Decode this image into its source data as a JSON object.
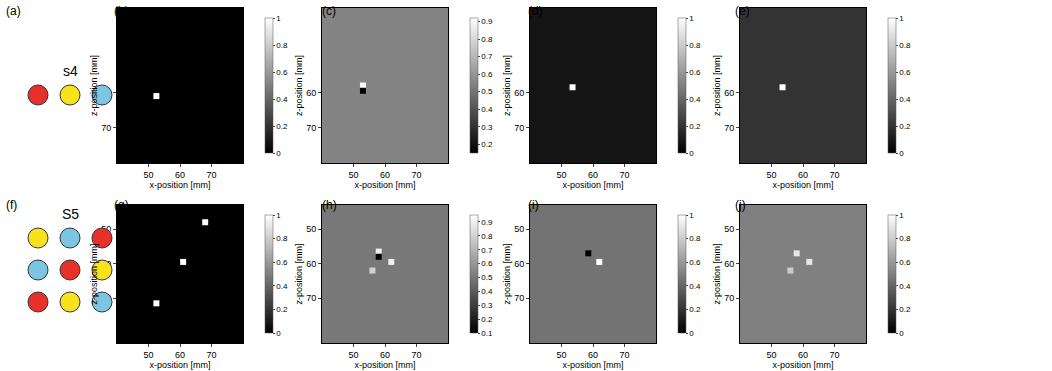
{
  "chart_data": [
    {
      "label": "(b)",
      "type": "heatmap",
      "xlabel": "x-position [mm]",
      "ylabel": "z-position [mm]",
      "xlim": [
        40,
        80
      ],
      "ylim": [
        80,
        36
      ],
      "xticks": [
        50,
        60,
        70
      ],
      "yticks": [
        60,
        70
      ],
      "background": 0,
      "spots": [
        {
          "x": 52.5,
          "z": 61,
          "value": 1
        }
      ],
      "colorbar_range": [
        0,
        1
      ],
      "colorbar_ticks": [
        0,
        0.2,
        0.4,
        0.6,
        0.8,
        1
      ]
    },
    {
      "label": "(c)",
      "type": "heatmap",
      "xlabel": "x-position [mm]",
      "ylabel": "z-position [mm]",
      "xlim": [
        40,
        80
      ],
      "ylim": [
        80,
        36
      ],
      "xticks": [
        50,
        60,
        70
      ],
      "yticks": [
        60,
        70
      ],
      "background": 0.55,
      "spots": [
        {
          "x": 53,
          "z": 58,
          "value": 0.9
        },
        {
          "x": 53,
          "z": 59.5,
          "value": 0.15
        }
      ],
      "colorbar_range": [
        0.15,
        0.92
      ],
      "colorbar_ticks": [
        0.2,
        0.3,
        0.4,
        0.5,
        0.6,
        0.7,
        0.8,
        0.9
      ]
    },
    {
      "label": "(d)",
      "type": "heatmap",
      "xlabel": "x-position [mm]",
      "ylabel": "z-position [mm]",
      "xlim": [
        40,
        80
      ],
      "ylim": [
        80,
        36
      ],
      "xticks": [
        50,
        60,
        70
      ],
      "yticks": [
        60,
        70
      ],
      "background": 0.08,
      "spots": [
        {
          "x": 53.5,
          "z": 58.5,
          "value": 1
        }
      ],
      "colorbar_range": [
        0,
        1
      ],
      "colorbar_ticks": [
        0,
        0.2,
        0.4,
        0.6,
        0.8,
        1
      ]
    },
    {
      "label": "(e)",
      "type": "heatmap",
      "xlabel": "x-position [mm]",
      "ylabel": "z-position [mm]",
      "xlim": [
        40,
        80
      ],
      "ylim": [
        80,
        36
      ],
      "xticks": [
        50,
        60,
        70
      ],
      "yticks": [
        60,
        70
      ],
      "background": 0.2,
      "spots": [
        {
          "x": 53.5,
          "z": 58.5,
          "value": 1
        }
      ],
      "colorbar_range": [
        0,
        1
      ],
      "colorbar_ticks": [
        0,
        0.2,
        0.4,
        0.6,
        0.8,
        1
      ]
    },
    {
      "label": "(g)",
      "type": "heatmap",
      "xlabel": "x-position [mm]",
      "ylabel": "z-position [mm]",
      "xlim": [
        40,
        80
      ],
      "ylim": [
        83,
        43
      ],
      "xticks": [
        50,
        60,
        70
      ],
      "yticks": [
        50,
        60,
        70
      ],
      "background": 0,
      "spots": [
        {
          "x": 68,
          "z": 48,
          "value": 1
        },
        {
          "x": 61,
          "z": 59.5,
          "value": 1
        },
        {
          "x": 52.5,
          "z": 71.5,
          "value": 1
        }
      ],
      "colorbar_range": [
        0,
        1
      ],
      "colorbar_ticks": [
        0,
        0.2,
        0.4,
        0.6,
        0.8,
        1
      ]
    },
    {
      "label": "(h)",
      "type": "heatmap",
      "xlabel": "x-position [mm]",
      "ylabel": "z-position [mm]",
      "xlim": [
        40,
        80
      ],
      "ylim": [
        83,
        43
      ],
      "xticks": [
        50,
        60,
        70
      ],
      "yticks": [
        50,
        60,
        70
      ],
      "background": 0.5,
      "spots": [
        {
          "x": 58,
          "z": 56.5,
          "value": 0.9
        },
        {
          "x": 62,
          "z": 59.5,
          "value": 0.9
        },
        {
          "x": 56,
          "z": 62,
          "value": 0.8
        },
        {
          "x": 58,
          "z": 58,
          "value": 0.1
        }
      ],
      "colorbar_range": [
        0.1,
        0.95
      ],
      "colorbar_ticks": [
        0.1,
        0.2,
        0.3,
        0.4,
        0.5,
        0.6,
        0.7,
        0.8,
        0.9
      ]
    },
    {
      "label": "(i)",
      "type": "heatmap",
      "xlabel": "x-position [mm]",
      "ylabel": "z-position [mm]",
      "xlim": [
        40,
        80
      ],
      "ylim": [
        83,
        43
      ],
      "xticks": [
        50,
        60,
        70
      ],
      "yticks": [
        50,
        60,
        70
      ],
      "background": 0.45,
      "spots": [
        {
          "x": 58.5,
          "z": 57,
          "value": 0
        },
        {
          "x": 62,
          "z": 59.5,
          "value": 1
        }
      ],
      "colorbar_range": [
        0,
        1
      ],
      "colorbar_ticks": [
        0,
        0.2,
        0.4,
        0.6,
        0.8,
        1
      ]
    },
    {
      "label": "(j)",
      "type": "heatmap",
      "xlabel": "x-position [mm]",
      "ylabel": "z-position [mm]",
      "xlim": [
        40,
        80
      ],
      "ylim": [
        83,
        43
      ],
      "xticks": [
        50,
        60,
        70
      ],
      "yticks": [
        50,
        60,
        70
      ],
      "background": 0.5,
      "spots": [
        {
          "x": 58,
          "z": 57,
          "value": 0.9
        },
        {
          "x": 62,
          "z": 59.5,
          "value": 0.9
        },
        {
          "x": 56,
          "z": 62,
          "value": 0.8
        }
      ],
      "colorbar_range": [
        0,
        1
      ],
      "colorbar_ticks": [
        0,
        0.2,
        0.4,
        0.6,
        0.8,
        1
      ]
    }
  ],
  "diagrams": [
    {
      "label": "(a)",
      "title": "s4",
      "rows": [
        [
          "#e8302a",
          "#f7e21c",
          "#7cc6e4"
        ]
      ]
    },
    {
      "label": "(f)",
      "title": "S5",
      "rows": [
        [
          "#f7e21c",
          "#7cc6e4",
          "#e8302a"
        ],
        [
          "#7cc6e4",
          "#e8302a",
          "#f7e21c"
        ],
        [
          "#e8302a",
          "#f7e21c",
          "#7cc6e4"
        ]
      ]
    }
  ]
}
